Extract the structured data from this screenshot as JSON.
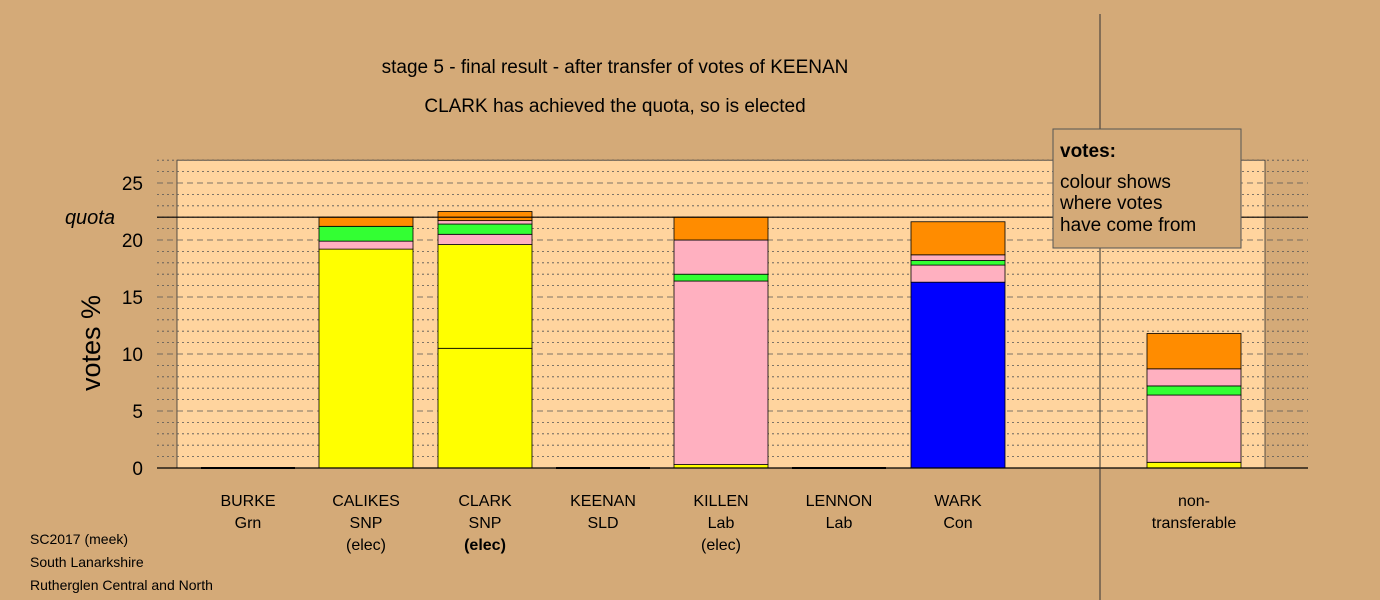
{
  "chart_data": {
    "type": "bar",
    "title": "stage 5 - final result - after transfer of votes of KEENAN",
    "subtitle": "CLARK has achieved the quota, so is elected",
    "ylabel": "votes %",
    "ylim": [
      0,
      27
    ],
    "yticks": [
      "0",
      "5",
      "10",
      "15",
      "20",
      "25"
    ],
    "quota": {
      "label": "quota",
      "value": 22.0
    },
    "colors": {
      "background": "#d4aa78",
      "plot_area": "#ffd49e",
      "yellow": "#ffff00",
      "pink": "#ffb0c0",
      "green": "#33ff33",
      "orange": "#ff8c00",
      "blue": "#0000ff"
    },
    "categories": [
      {
        "lines": [
          "BURKE",
          "Grn"
        ],
        "bold_line": -1,
        "segments": []
      },
      {
        "lines": [
          "CALIKES",
          "SNP",
          "(elec)"
        ],
        "bold_line": -1,
        "segments": [
          {
            "color": "yellow",
            "value": 19.2
          },
          {
            "color": "pink",
            "value": 0.7
          },
          {
            "color": "green",
            "value": 1.3
          },
          {
            "color": "orange",
            "value": 0.8
          }
        ]
      },
      {
        "lines": [
          "CLARK",
          "SNP",
          "(elec)"
        ],
        "bold_line": 2,
        "segments": [
          {
            "color": "yellow",
            "value": 10.5
          },
          {
            "color": "yellow",
            "value": 9.1
          },
          {
            "color": "pink",
            "value": 0.9
          },
          {
            "color": "green",
            "value": 0.9
          },
          {
            "color": "pink",
            "value": 0.3
          },
          {
            "color": "orange",
            "value": 0.8
          }
        ]
      },
      {
        "lines": [
          "KEENAN",
          "SLD"
        ],
        "bold_line": -1,
        "segments": []
      },
      {
        "lines": [
          "KILLEN",
          "Lab",
          "(elec)"
        ],
        "bold_line": -1,
        "segments": [
          {
            "color": "yellow",
            "value": 0.3
          },
          {
            "color": "pink",
            "value": 16.1
          },
          {
            "color": "green",
            "value": 0.6
          },
          {
            "color": "pink",
            "value": 3.0
          },
          {
            "color": "orange",
            "value": 2.0
          }
        ]
      },
      {
        "lines": [
          "LENNON",
          "Lab"
        ],
        "bold_line": -1,
        "segments": []
      },
      {
        "lines": [
          "WARK",
          "Con"
        ],
        "bold_line": -1,
        "segments": [
          {
            "color": "blue",
            "value": 16.3
          },
          {
            "color": "pink",
            "value": 1.5
          },
          {
            "color": "green",
            "value": 0.4
          },
          {
            "color": "pink",
            "value": 0.5
          },
          {
            "color": "orange",
            "value": 2.9
          }
        ]
      },
      {
        "lines": [
          "non-",
          "transferable"
        ],
        "bold_line": -1,
        "segments": [
          {
            "color": "yellow",
            "value": 0.5
          },
          {
            "color": "pink",
            "value": 5.9
          },
          {
            "color": "green",
            "value": 0.8
          },
          {
            "color": "pink",
            "value": 1.5
          },
          {
            "color": "orange",
            "value": 3.1
          }
        ]
      }
    ],
    "legend": {
      "title": "votes:",
      "lines": [
        "colour shows",
        "where votes",
        "have come from"
      ],
      "placement": "top-right"
    },
    "grid": true
  },
  "footer": {
    "line1": "SC2017 (meek)",
    "line2": "South Lanarkshire",
    "line3": "Rutherglen Central and North"
  }
}
